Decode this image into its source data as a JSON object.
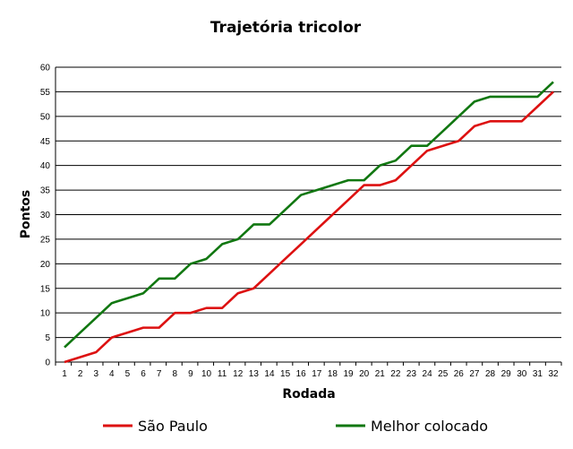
{
  "chart_data": {
    "type": "line",
    "title": "Trajetória tricolor",
    "xlabel": "Rodada",
    "ylabel": "Pontos",
    "x": [
      1,
      2,
      3,
      4,
      5,
      6,
      7,
      8,
      9,
      10,
      11,
      12,
      13,
      14,
      15,
      16,
      17,
      18,
      19,
      20,
      21,
      22,
      23,
      24,
      25,
      26,
      27,
      28,
      29,
      30,
      31,
      32
    ],
    "xlim": [
      1,
      32
    ],
    "ylim": [
      0,
      60
    ],
    "yticks": [
      0,
      5,
      10,
      15,
      20,
      25,
      30,
      35,
      40,
      45,
      50,
      55,
      60
    ],
    "grid": "horizontal",
    "legend": "bottom",
    "series": [
      {
        "name": "São Paulo",
        "color": "#dd1111",
        "values": [
          0,
          1,
          2,
          5,
          6,
          7,
          7,
          10,
          10,
          11,
          11,
          14,
          15,
          18,
          21,
          24,
          27,
          30,
          33,
          36,
          36,
          37,
          40,
          43,
          44,
          45,
          48,
          49,
          49,
          49,
          52,
          55
        ]
      },
      {
        "name": "Melhor colocado",
        "color": "#117711",
        "values": [
          3,
          6,
          9,
          12,
          13,
          14,
          17,
          17,
          20,
          21,
          24,
          25,
          28,
          28,
          31,
          34,
          35,
          36,
          37,
          37,
          40,
          41,
          44,
          44,
          47,
          50,
          53,
          54,
          54,
          54,
          54,
          57
        ]
      }
    ]
  }
}
